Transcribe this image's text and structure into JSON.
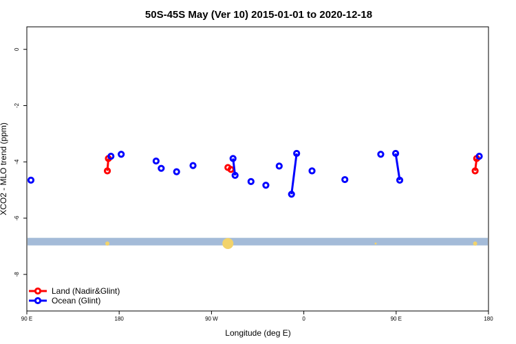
{
  "chart_data": {
    "type": "scatter",
    "title": "50S-45S May (Ver 10)   2015-01-01 to 2020-12-18",
    "xlabel": "Longitude (deg E)",
    "ylabel": "XCO2 - MLO trend (ppm)",
    "xlim": [
      90,
      540
    ],
    "ylim": [
      -9.3,
      0.8
    ],
    "x_ticks": [
      {
        "value": 90,
        "label": "90 E"
      },
      {
        "value": 180,
        "label": "180"
      },
      {
        "value": 270,
        "label": "90 W"
      },
      {
        "value": 360,
        "label": "0"
      },
      {
        "value": 450,
        "label": "90 E"
      },
      {
        "value": 540,
        "label": "180"
      }
    ],
    "y_ticks": [
      0,
      -2,
      -4,
      -6,
      -8
    ],
    "legend": {
      "position": "bottom-left",
      "entries": [
        {
          "label": "Land (Nadir&Glint)",
          "color": "#ff0000"
        },
        {
          "label": "Ocean (Glint)",
          "color": "#0000ff"
        }
      ]
    },
    "series": [
      {
        "name": "Land (Nadir&Glint)",
        "color": "#ff0000",
        "points": [
          [
            168.5,
            -4.32
          ],
          [
            169.5,
            -3.88
          ],
          [
            286.0,
            -4.2
          ],
          [
            289.0,
            -4.27
          ],
          [
            527.0,
            -4.32
          ],
          [
            528.5,
            -3.88
          ]
        ],
        "segments": [
          [
            [
              168.5,
              -4.32
            ],
            [
              169.5,
              -3.88
            ]
          ],
          [
            [
              527.0,
              -4.32
            ],
            [
              528.5,
              -3.88
            ]
          ]
        ]
      },
      {
        "name": "Ocean (Glint)",
        "color": "#0000ff",
        "points": [
          [
            94.0,
            -4.65
          ],
          [
            172.0,
            -3.8
          ],
          [
            182.0,
            -3.73
          ],
          [
            216.0,
            -3.97
          ],
          [
            221.0,
            -4.23
          ],
          [
            236.0,
            -4.35
          ],
          [
            252.0,
            -4.13
          ],
          [
            291.0,
            -3.88
          ],
          [
            293.0,
            -4.48
          ],
          [
            308.5,
            -4.7
          ],
          [
            323.0,
            -4.83
          ],
          [
            336.0,
            -4.15
          ],
          [
            348.0,
            -5.15
          ],
          [
            353.0,
            -3.7
          ],
          [
            368.0,
            -4.32
          ],
          [
            400.0,
            -4.63
          ],
          [
            435.0,
            -3.73
          ],
          [
            449.5,
            -3.7
          ],
          [
            453.5,
            -4.65
          ],
          [
            531.0,
            -3.8
          ]
        ],
        "segments": [
          [
            [
              291.0,
              -3.88
            ],
            [
              293.0,
              -4.48
            ]
          ],
          [
            [
              348.0,
              -5.15
            ],
            [
              353.0,
              -3.7
            ]
          ],
          [
            [
              449.5,
              -3.7
            ],
            [
              453.5,
              -4.65
            ]
          ]
        ]
      }
    ],
    "map_strip": {
      "y_range": [
        -6.97,
        -6.7
      ],
      "color": "#a4bbd8",
      "land_color": "#f2d36b",
      "land_markers": [
        {
          "x": 168.5,
          "size": 3
        },
        {
          "x": 286.0,
          "size": 8
        },
        {
          "x": 430.0,
          "size": 1.5
        },
        {
          "x": 527.0,
          "size": 3
        }
      ]
    }
  }
}
